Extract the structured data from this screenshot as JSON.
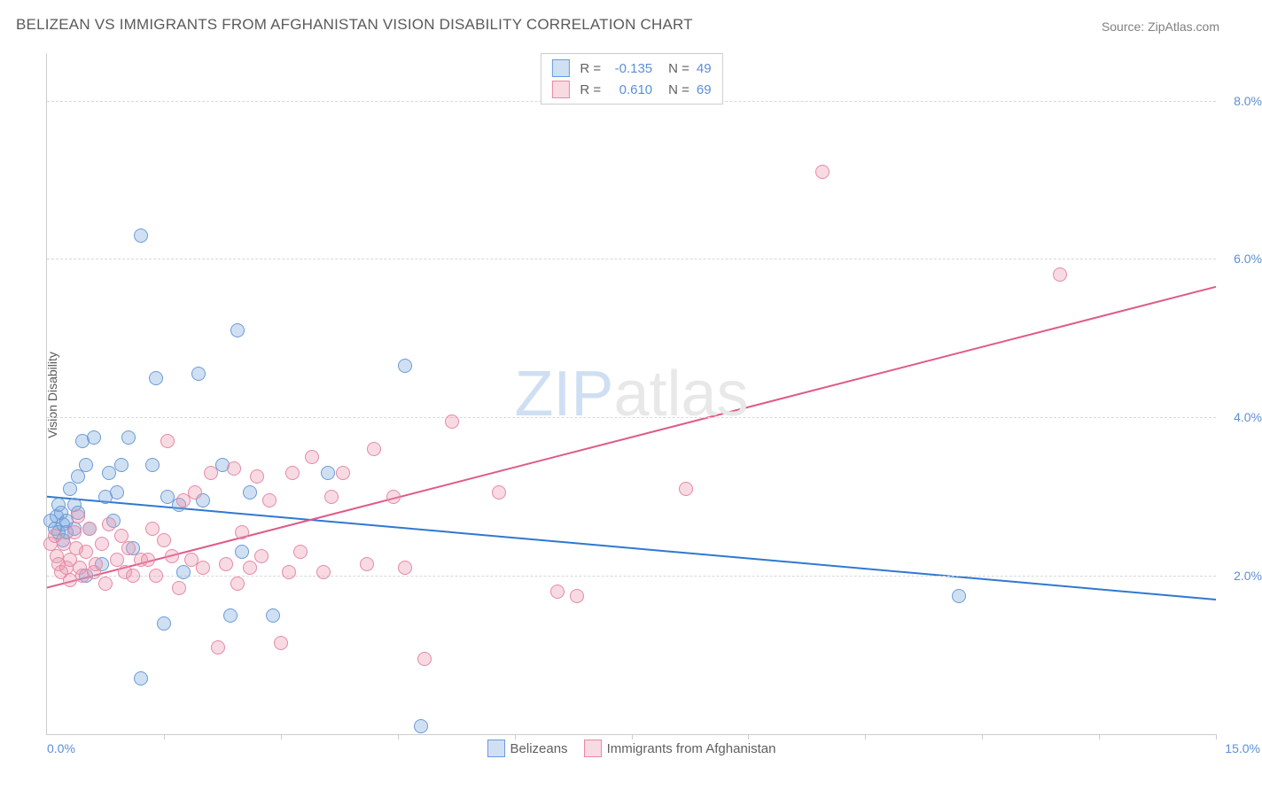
{
  "title": "BELIZEAN VS IMMIGRANTS FROM AFGHANISTAN VISION DISABILITY CORRELATION CHART",
  "source_label": "Source: ZipAtlas.com",
  "y_axis_label": "Vision Disability",
  "watermark": {
    "part1": "ZIP",
    "part2": "atlas"
  },
  "chart": {
    "type": "scatter",
    "background_color": "#ffffff",
    "grid_color": "#d8d8d8",
    "axis_color": "#cccccc",
    "xlim": [
      0.0,
      15.0
    ],
    "ylim": [
      0.0,
      8.6
    ],
    "y_ticks": [
      {
        "value": 2.0,
        "label": "2.0%"
      },
      {
        "value": 4.0,
        "label": "4.0%"
      },
      {
        "value": 6.0,
        "label": "6.0%"
      },
      {
        "value": 8.0,
        "label": "8.0%"
      }
    ],
    "x_ticks_minor": [
      1.5,
      3.0,
      4.5,
      6.0,
      7.5,
      9.0,
      10.5,
      12.0,
      13.5,
      15.0
    ],
    "x_tick_labels": [
      {
        "value": 0.0,
        "label": "0.0%",
        "align": "left"
      },
      {
        "value": 15.0,
        "label": "15.0%",
        "align": "right"
      }
    ],
    "marker_radius": 8,
    "marker_border_width": 1.5,
    "trend_line_width": 2,
    "series": [
      {
        "name": "Belizeans",
        "fill_color": "rgba(120,165,220,0.35)",
        "stroke_color": "#6a9bd8",
        "line_color": "#2f78d1",
        "R": "-0.135",
        "N": "49",
        "trend": {
          "x1": 0.0,
          "y1": 3.0,
          "x2": 15.0,
          "y2": 1.7
        },
        "points": [
          [
            0.05,
            2.7
          ],
          [
            0.1,
            2.6
          ],
          [
            0.12,
            2.75
          ],
          [
            0.15,
            2.9
          ],
          [
            0.15,
            2.55
          ],
          [
            0.18,
            2.8
          ],
          [
            0.2,
            2.65
          ],
          [
            0.2,
            2.45
          ],
          [
            0.25,
            2.7
          ],
          [
            0.25,
            2.55
          ],
          [
            0.3,
            3.1
          ],
          [
            0.35,
            2.9
          ],
          [
            0.35,
            2.6
          ],
          [
            0.4,
            3.25
          ],
          [
            0.4,
            2.8
          ],
          [
            0.45,
            3.7
          ],
          [
            0.5,
            3.4
          ],
          [
            0.5,
            2.0
          ],
          [
            0.55,
            2.6
          ],
          [
            0.6,
            3.75
          ],
          [
            0.7,
            2.15
          ],
          [
            0.75,
            3.0
          ],
          [
            0.8,
            3.3
          ],
          [
            0.85,
            2.7
          ],
          [
            0.9,
            3.05
          ],
          [
            0.95,
            3.4
          ],
          [
            1.05,
            3.75
          ],
          [
            1.1,
            2.35
          ],
          [
            1.2,
            0.7
          ],
          [
            1.2,
            6.3
          ],
          [
            1.35,
            3.4
          ],
          [
            1.4,
            4.5
          ],
          [
            1.5,
            1.4
          ],
          [
            1.55,
            3.0
          ],
          [
            1.7,
            2.9
          ],
          [
            1.75,
            2.05
          ],
          [
            1.95,
            4.55
          ],
          [
            2.0,
            2.95
          ],
          [
            2.25,
            3.4
          ],
          [
            2.35,
            1.5
          ],
          [
            2.45,
            5.1
          ],
          [
            2.5,
            2.3
          ],
          [
            2.6,
            3.05
          ],
          [
            2.9,
            1.5
          ],
          [
            3.6,
            3.3
          ],
          [
            4.6,
            4.65
          ],
          [
            4.8,
            0.1
          ],
          [
            11.7,
            1.75
          ]
        ]
      },
      {
        "name": "Immigrants from Afghanistan",
        "fill_color": "rgba(235,150,175,0.35)",
        "stroke_color": "#e58aa5",
        "line_color": "#e05a87",
        "R": "0.610",
        "N": "69",
        "trend": {
          "x1": 0.0,
          "y1": 1.85,
          "x2": 15.0,
          "y2": 5.65
        },
        "points": [
          [
            0.05,
            2.4
          ],
          [
            0.1,
            2.5
          ],
          [
            0.12,
            2.25
          ],
          [
            0.15,
            2.15
          ],
          [
            0.18,
            2.05
          ],
          [
            0.22,
            2.4
          ],
          [
            0.25,
            2.1
          ],
          [
            0.3,
            2.2
          ],
          [
            0.3,
            1.95
          ],
          [
            0.35,
            2.55
          ],
          [
            0.38,
            2.35
          ],
          [
            0.4,
            2.75
          ],
          [
            0.42,
            2.1
          ],
          [
            0.45,
            2.0
          ],
          [
            0.5,
            2.3
          ],
          [
            0.55,
            2.6
          ],
          [
            0.6,
            2.05
          ],
          [
            0.62,
            2.15
          ],
          [
            0.7,
            2.4
          ],
          [
            0.75,
            1.9
          ],
          [
            0.8,
            2.65
          ],
          [
            0.9,
            2.2
          ],
          [
            0.95,
            2.5
          ],
          [
            1.0,
            2.05
          ],
          [
            1.05,
            2.35
          ],
          [
            1.1,
            2.0
          ],
          [
            1.2,
            2.2
          ],
          [
            1.3,
            2.2
          ],
          [
            1.35,
            2.6
          ],
          [
            1.4,
            2.0
          ],
          [
            1.5,
            2.45
          ],
          [
            1.55,
            3.7
          ],
          [
            1.6,
            2.25
          ],
          [
            1.7,
            1.85
          ],
          [
            1.75,
            2.95
          ],
          [
            1.85,
            2.2
          ],
          [
            1.9,
            3.05
          ],
          [
            2.0,
            2.1
          ],
          [
            2.1,
            3.3
          ],
          [
            2.2,
            1.1
          ],
          [
            2.3,
            2.15
          ],
          [
            2.4,
            3.35
          ],
          [
            2.5,
            2.55
          ],
          [
            2.45,
            1.9
          ],
          [
            2.6,
            2.1
          ],
          [
            2.7,
            3.25
          ],
          [
            2.85,
            2.95
          ],
          [
            2.75,
            2.25
          ],
          [
            3.0,
            1.15
          ],
          [
            3.1,
            2.05
          ],
          [
            3.15,
            3.3
          ],
          [
            3.25,
            2.3
          ],
          [
            3.4,
            3.5
          ],
          [
            3.55,
            2.05
          ],
          [
            3.65,
            3.0
          ],
          [
            3.8,
            3.3
          ],
          [
            4.1,
            2.15
          ],
          [
            4.2,
            3.6
          ],
          [
            4.45,
            3.0
          ],
          [
            4.6,
            2.1
          ],
          [
            4.85,
            0.95
          ],
          [
            5.2,
            3.95
          ],
          [
            5.8,
            3.05
          ],
          [
            6.55,
            1.8
          ],
          [
            6.8,
            1.75
          ],
          [
            8.2,
            3.1
          ],
          [
            9.95,
            7.1
          ],
          [
            13.0,
            5.8
          ]
        ]
      }
    ]
  },
  "legend_top": {
    "r_label": "R =",
    "n_label": "N ="
  }
}
